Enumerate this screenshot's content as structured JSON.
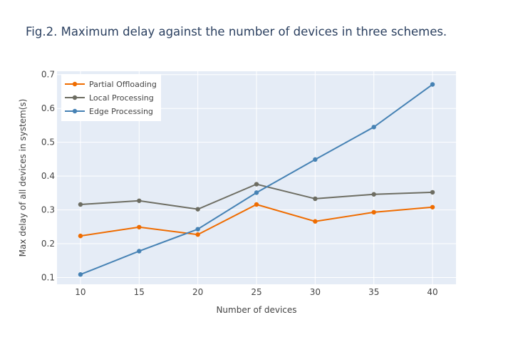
{
  "chart_data": {
    "type": "line",
    "title": "Fig.2. Maximum delay against the number of devices in three schemes.",
    "xlabel": "Number of devices",
    "ylabel": "Max delay of all devices in system(s)",
    "x": [
      10,
      15,
      20,
      25,
      30,
      35,
      40
    ],
    "xticks": [
      10,
      15,
      20,
      25,
      30,
      35,
      40
    ],
    "yticks": [
      0.1,
      0.2,
      0.3,
      0.4,
      0.5,
      0.6,
      0.7
    ],
    "xlim": [
      8,
      42
    ],
    "ylim": [
      0.08,
      0.71
    ],
    "grid": true,
    "legend_position": "top-left",
    "series": [
      {
        "name": "Partial Offloading",
        "color": "#ef6c00",
        "values": [
          0.223,
          0.249,
          0.227,
          0.316,
          0.266,
          0.293,
          0.308
        ]
      },
      {
        "name": "Local Processing",
        "color": "#6d6d62",
        "values": [
          0.316,
          0.327,
          0.302,
          0.376,
          0.333,
          0.346,
          0.352
        ]
      },
      {
        "name": "Edge Processing",
        "color": "#4682b4",
        "values": [
          0.109,
          0.178,
          0.243,
          0.351,
          0.449,
          0.545,
          0.671
        ]
      }
    ]
  }
}
